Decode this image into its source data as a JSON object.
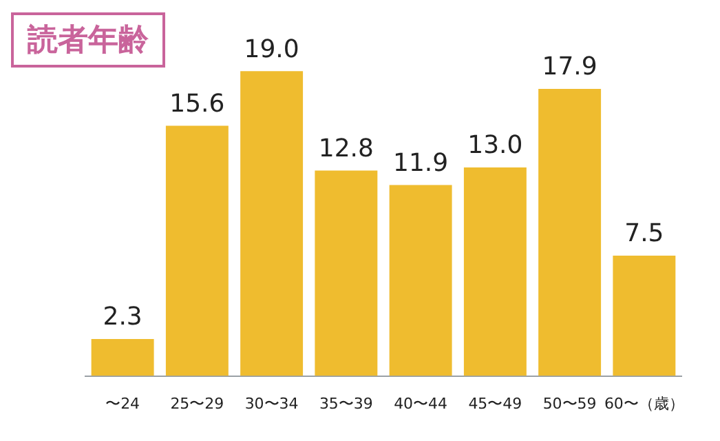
{
  "chart_data": {
    "type": "bar",
    "title": "読者年齢",
    "categories": [
      "〜24",
      "25〜29",
      "30〜34",
      "35〜39",
      "40〜44",
      "45〜49",
      "50〜59",
      "60〜（歳）"
    ],
    "values": [
      2.3,
      15.6,
      19.0,
      12.8,
      11.9,
      13.0,
      17.9,
      7.5
    ],
    "value_labels": [
      "2.3",
      "15.6",
      "19.0",
      "12.8",
      "11.9",
      "13.0",
      "17.9",
      "7.5"
    ],
    "color": "#efbc2f",
    "grid": false,
    "legend": false
  }
}
